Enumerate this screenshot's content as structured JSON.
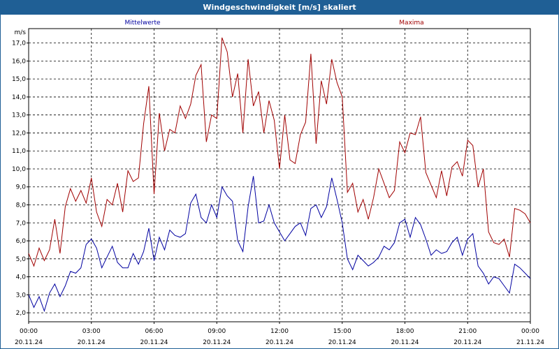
{
  "window": {
    "title": "Windgeschwindigkeit [m/s] skaliert"
  },
  "chart_data": {
    "type": "line",
    "title": "Windgeschwindigkeit [m/s] skaliert",
    "ylabel": "m/s",
    "xlabel": "",
    "ylim": [
      1.5,
      17.8
    ],
    "grid": true,
    "legend_placement": "top",
    "y_ticks": [
      "2,0",
      "3,0",
      "4,0",
      "5,0",
      "6,0",
      "7,0",
      "8,0",
      "9,0",
      "10,0",
      "11,0",
      "12,0",
      "13,0",
      "14,0",
      "15,0",
      "16,0",
      "17,0"
    ],
    "x_ticks": [
      {
        "time": "00:00",
        "date": "20.11.24"
      },
      {
        "time": "03:00",
        "date": "20.11.24"
      },
      {
        "time": "06:00",
        "date": "20.11.24"
      },
      {
        "time": "09:00",
        "date": "20.11.24"
      },
      {
        "time": "12:00",
        "date": "20.11.24"
      },
      {
        "time": "15:00",
        "date": "20.11.24"
      },
      {
        "time": "18:00",
        "date": "20.11.24"
      },
      {
        "time": "21:00",
        "date": "20.11.24"
      },
      {
        "time": "00:00",
        "date": "21.11.24"
      }
    ],
    "x_unit": "hours from 20.11.24 00:00",
    "series": [
      {
        "name": "Mittelwerte",
        "color": "#0000a0",
        "x": [
          0,
          0.25,
          0.5,
          0.75,
          1,
          1.25,
          1.5,
          1.75,
          2,
          2.25,
          2.5,
          2.75,
          3,
          3.25,
          3.5,
          3.75,
          4,
          4.25,
          4.5,
          4.75,
          5,
          5.25,
          5.5,
          5.75,
          6,
          6.25,
          6.5,
          6.75,
          7,
          7.25,
          7.5,
          7.75,
          8,
          8.25,
          8.5,
          8.75,
          9,
          9.25,
          9.5,
          9.75,
          10,
          10.25,
          10.5,
          10.75,
          11,
          11.25,
          11.5,
          11.75,
          12,
          12.25,
          12.5,
          12.75,
          13,
          13.25,
          13.5,
          13.75,
          14,
          14.25,
          14.5,
          14.75,
          15,
          15.25,
          15.5,
          15.75,
          16,
          16.25,
          16.5,
          16.75,
          17,
          17.25,
          17.5,
          17.75,
          18,
          18.25,
          18.5,
          18.75,
          19,
          19.25,
          19.5,
          19.75,
          20,
          20.25,
          20.5,
          20.75,
          21,
          21.25,
          21.5,
          21.75,
          22,
          22.25,
          22.5,
          22.75,
          23,
          23.25,
          23.5,
          23.75,
          24
        ],
        "values": [
          3.0,
          2.3,
          2.9,
          2.1,
          3.1,
          3.6,
          2.9,
          3.5,
          4.3,
          4.2,
          4.5,
          5.8,
          6.1,
          5.6,
          4.5,
          5.1,
          5.7,
          4.8,
          4.5,
          4.5,
          5.3,
          4.7,
          5.4,
          6.7,
          4.9,
          6.2,
          5.5,
          6.6,
          6.3,
          6.2,
          6.4,
          8.1,
          8.6,
          7.3,
          7.0,
          8.0,
          7.3,
          9.0,
          8.5,
          8.2,
          6.0,
          5.4,
          7.9,
          9.6,
          7.0,
          7.1,
          8.0,
          7.0,
          6.5,
          6.0,
          6.4,
          6.8,
          7.0,
          6.3,
          7.8,
          8.0,
          7.3,
          7.9,
          9.5,
          8.3,
          7.0,
          5.0,
          4.4,
          5.2,
          4.9,
          4.6,
          4.8,
          5.1,
          5.7,
          5.5,
          5.9,
          7.0,
          7.2,
          6.2,
          7.3,
          6.9,
          6.1,
          5.2,
          5.5,
          5.3,
          5.4,
          5.9,
          6.2,
          5.2,
          6.1,
          6.4,
          4.6,
          4.2,
          3.6,
          4.0,
          3.9,
          3.5,
          3.1,
          4.7,
          4.5,
          4.2,
          3.9
        ],
        "peak_points_note": "values read at 15-minute steps"
      },
      {
        "name": "Maxima",
        "color": "#a00000",
        "x": [
          0,
          0.25,
          0.5,
          0.75,
          1,
          1.25,
          1.5,
          1.75,
          2,
          2.25,
          2.5,
          2.75,
          3,
          3.25,
          3.5,
          3.75,
          4,
          4.25,
          4.5,
          4.75,
          5,
          5.25,
          5.5,
          5.75,
          6,
          6.25,
          6.5,
          6.75,
          7,
          7.25,
          7.5,
          7.75,
          8,
          8.25,
          8.5,
          8.75,
          9,
          9.25,
          9.5,
          9.75,
          10,
          10.25,
          10.5,
          10.75,
          11,
          11.25,
          11.5,
          11.75,
          12,
          12.25,
          12.5,
          12.75,
          13,
          13.25,
          13.5,
          13.75,
          14,
          14.25,
          14.5,
          14.75,
          15,
          15.25,
          15.5,
          15.75,
          16,
          16.25,
          16.5,
          16.75,
          17,
          17.25,
          17.5,
          17.75,
          18,
          18.25,
          18.5,
          18.75,
          19,
          19.25,
          19.5,
          19.75,
          20,
          20.25,
          20.5,
          20.75,
          21,
          21.25,
          21.5,
          21.75,
          22,
          22.25,
          22.5,
          22.75,
          23,
          23.25,
          23.5,
          23.75,
          24
        ],
        "values": [
          5.3,
          4.6,
          5.6,
          4.9,
          5.5,
          7.2,
          5.3,
          7.9,
          8.9,
          8.2,
          8.8,
          8.1,
          9.5,
          7.6,
          6.8,
          8.3,
          8.0,
          9.2,
          7.6,
          9.9,
          9.3,
          9.5,
          12.5,
          14.6,
          8.6,
          13.1,
          11.0,
          12.2,
          12.0,
          13.5,
          12.8,
          13.6,
          15.2,
          15.8,
          11.5,
          13.0,
          12.8,
          17.3,
          16.5,
          14.0,
          15.3,
          12.0,
          16.1,
          13.5,
          14.3,
          12.0,
          13.8,
          12.7,
          10.0,
          13.0,
          10.5,
          10.3,
          11.9,
          12.6,
          16.4,
          11.4,
          14.9,
          13.6,
          16.1,
          14.8,
          14.0,
          8.7,
          9.2,
          7.6,
          8.3,
          7.2,
          8.4,
          10.0,
          9.2,
          8.4,
          8.8,
          11.5,
          10.9,
          12.0,
          11.9,
          12.9,
          9.8,
          9.1,
          8.4,
          9.9,
          8.5,
          10.1,
          10.4,
          9.6,
          11.6,
          11.3,
          9.0,
          10.0,
          6.5,
          5.9,
          5.8,
          6.1,
          5.1,
          7.8,
          7.7,
          7.5,
          7.0
        ]
      }
    ]
  }
}
